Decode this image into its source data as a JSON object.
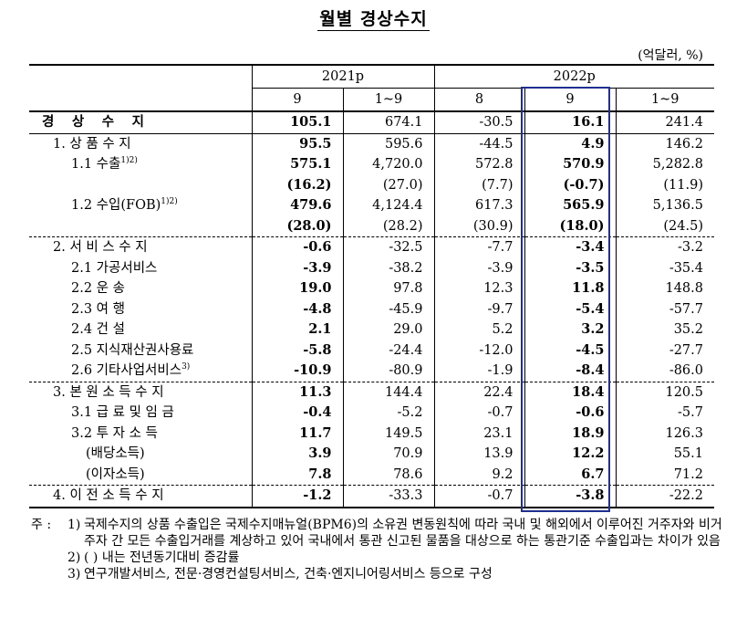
{
  "title": "월별 경상수지",
  "unit": "(억달러, %)",
  "header": {
    "group_2021": "2021p",
    "group_2022": "2022p",
    "cols": [
      "9",
      "1~9",
      "8",
      "9",
      "1~9"
    ]
  },
  "rows": [
    {
      "label": "경 상 수 지",
      "indent": 0,
      "bold": true,
      "vals": [
        "105.1",
        "674.1",
        "-30.5",
        "16.1",
        "241.4"
      ]
    },
    {
      "label": "1. 상 품 수 지",
      "indent": 1,
      "vals": [
        "95.5",
        "595.6",
        "-44.5",
        "4.9",
        "146.2"
      ]
    },
    {
      "label": "1.1  수출",
      "sup": "1)2)",
      "indent": 2,
      "vals": [
        "575.1",
        "4,720.0",
        "572.8",
        "570.9",
        "5,282.8"
      ]
    },
    {
      "label": "",
      "indent": 2,
      "vals": [
        "(16.2)",
        "(27.0)",
        "(7.7)",
        "(-0.7)",
        "(11.9)"
      ]
    },
    {
      "label": "1.2  수입(FOB)",
      "sup": "1)2)",
      "indent": 2,
      "vals": [
        "479.6",
        "4,124.4",
        "617.3",
        "565.9",
        "5,136.5"
      ]
    },
    {
      "label": "",
      "indent": 2,
      "vals": [
        "(28.0)",
        "(28.2)",
        "(30.9)",
        "(18.0)",
        "(24.5)"
      ]
    },
    {
      "label": "2. 서 비 스 수 지",
      "indent": 1,
      "vals": [
        "-0.6",
        "-32.5",
        "-7.7",
        "-3.4",
        "-3.2"
      ]
    },
    {
      "label": "2.1  가공서비스",
      "indent": 2,
      "vals": [
        "-3.9",
        "-38.2",
        "-3.9",
        "-3.5",
        "-35.4"
      ]
    },
    {
      "label": "2.2  운          송",
      "indent": 2,
      "vals": [
        "19.0",
        "97.8",
        "12.3",
        "11.8",
        "148.8"
      ]
    },
    {
      "label": "2.3  여          행",
      "indent": 2,
      "vals": [
        "-4.8",
        "-45.9",
        "-9.7",
        "-5.4",
        "-57.7"
      ]
    },
    {
      "label": "2.4  건          설",
      "indent": 2,
      "vals": [
        "2.1",
        "29.0",
        "5.2",
        "3.2",
        "35.2"
      ]
    },
    {
      "label": "2.5  지식재산권사용료",
      "indent": 2,
      "vals": [
        "-5.8",
        "-24.4",
        "-12.0",
        "-4.5",
        "-27.7"
      ]
    },
    {
      "label": "2.6  기타사업서비스",
      "sup": "3)",
      "indent": 2,
      "vals": [
        "-10.9",
        "-80.9",
        "-1.9",
        "-8.4",
        "-86.0"
      ]
    },
    {
      "label": "3. 본 원 소 득 수 지",
      "indent": 1,
      "vals": [
        "11.3",
        "144.4",
        "22.4",
        "18.4",
        "120.5"
      ]
    },
    {
      "label": "3.1  급 료 및 임 금",
      "indent": 2,
      "vals": [
        "-0.4",
        "-5.2",
        "-0.7",
        "-0.6",
        "-5.7"
      ]
    },
    {
      "label": "3.2  투 자 소 득",
      "indent": 2,
      "vals": [
        "11.7",
        "149.5",
        "23.1",
        "18.9",
        "126.3"
      ]
    },
    {
      "label": "(배당소득)",
      "indent": 3,
      "vals": [
        "3.9",
        "70.9",
        "13.9",
        "12.2",
        "55.1"
      ]
    },
    {
      "label": "(이자소득)",
      "indent": 3,
      "vals": [
        "7.8",
        "78.6",
        "9.2",
        "6.7",
        "71.2"
      ]
    },
    {
      "label": "4. 이 전 소 득 수 지",
      "indent": 1,
      "vals": [
        "-1.2",
        "-33.3",
        "-0.7",
        "-3.8",
        "-22.2"
      ]
    }
  ],
  "notes": {
    "prefix": "주 :",
    "items": [
      {
        "num": "1)",
        "text": "국제수지의 상품 수출입은 국제수지매뉴얼(BPM6)의 소유권 변동원칙에 따라 국내 및 해외에서 이루어진 거주자와 비거주자 간 모든 수출입거래를 계상하고 있어 국내에서 통관 신고된 물품을 대상으로 하는 통관기준 수출입과는 차이가 있음"
      },
      {
        "num": "2)",
        "text": "(  ) 내는 전년동기대비 증감률"
      },
      {
        "num": "3)",
        "text": "연구개발서비스, 전문·경영컨설팅서비스, 건축·엔지니어링서비스 등으로 구성"
      }
    ]
  }
}
